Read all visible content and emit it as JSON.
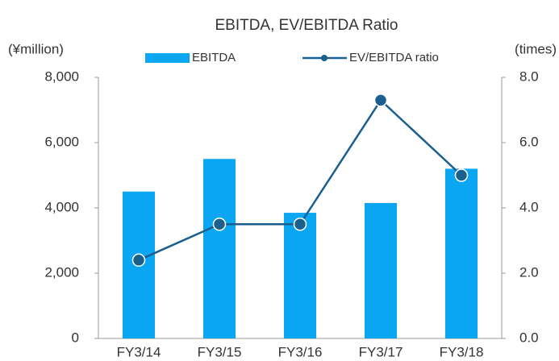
{
  "chart_data": {
    "type": "bar_line",
    "title": "EBITDA, EV/EBITDA Ratio",
    "ylabel": "(¥million)",
    "y2label": "(times)",
    "categories": [
      "FY3/14",
      "FY3/15",
      "FY3/16",
      "FY3/17",
      "FY3/18"
    ],
    "series": [
      {
        "name": "EBITDA",
        "type": "bar",
        "color": "#0aa6f2",
        "axis": "y",
        "values": [
          4500,
          5500,
          3850,
          4150,
          5200
        ]
      },
      {
        "name": "EV/EBITDA ratio",
        "type": "line",
        "color": "#1b5f8e",
        "axis": "y2",
        "values": [
          2.4,
          3.5,
          3.5,
          7.3,
          5.0
        ]
      }
    ],
    "ylim": [
      0,
      8000
    ],
    "yticks": [
      {
        "value": 0,
        "label": "0"
      },
      {
        "value": 2000,
        "label": "2,000"
      },
      {
        "value": 4000,
        "label": "4,000"
      },
      {
        "value": 6000,
        "label": "6,000"
      },
      {
        "value": 8000,
        "label": "8,000"
      }
    ],
    "y2lim": [
      0,
      8
    ],
    "y2ticks": [
      {
        "value": 0,
        "label": "0.0"
      },
      {
        "value": 2,
        "label": "2.0"
      },
      {
        "value": 4,
        "label": "4.0"
      },
      {
        "value": 6,
        "label": "6.0"
      },
      {
        "value": 8,
        "label": "8.0"
      }
    ],
    "legend": "top"
  }
}
